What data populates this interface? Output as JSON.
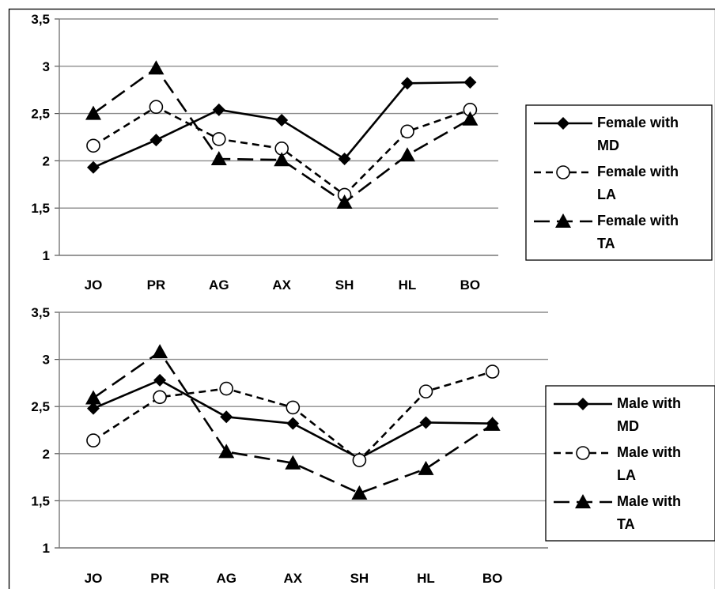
{
  "chart_data": [
    {
      "type": "line",
      "title": "",
      "xlabel": "",
      "ylabel": "",
      "categories": [
        "JO",
        "PR",
        "AG",
        "AX",
        "SH",
        "HL",
        "BO"
      ],
      "ylim": [
        1,
        3.5
      ],
      "yticks": [
        "1",
        "1,5",
        "2",
        "2,5",
        "3",
        "3,5"
      ],
      "grid": true,
      "legend_position": "right",
      "series": [
        {
          "name_lines": [
            "Female with",
            "MD"
          ],
          "marker": "diamond",
          "dash": "solid",
          "values": [
            1.93,
            2.22,
            2.54,
            2.43,
            2.02,
            2.82,
            2.83
          ]
        },
        {
          "name_lines": [
            "Female with",
            "LA"
          ],
          "marker": "circle",
          "dash": "short",
          "values": [
            2.16,
            2.57,
            2.23,
            2.13,
            1.64,
            2.31,
            2.54
          ]
        },
        {
          "name_lines": [
            "Female with",
            "TA"
          ],
          "marker": "triangle",
          "dash": "long",
          "values": [
            2.5,
            2.98,
            2.02,
            2.01,
            1.56,
            2.06,
            2.44
          ]
        }
      ]
    },
    {
      "type": "line",
      "title": "",
      "xlabel": "",
      "ylabel": "",
      "categories": [
        "JO",
        "PR",
        "AG",
        "AX",
        "SH",
        "HL",
        "BO"
      ],
      "ylim": [
        1,
        3.5
      ],
      "yticks": [
        "1",
        "1,5",
        "2",
        "2,5",
        "3",
        "3,5"
      ],
      "grid": true,
      "legend_position": "right",
      "series": [
        {
          "name_lines": [
            "Male with",
            "MD"
          ],
          "marker": "diamond",
          "dash": "solid",
          "values": [
            2.48,
            2.78,
            2.39,
            2.32,
            1.95,
            2.33,
            2.32
          ]
        },
        {
          "name_lines": [
            "Male with",
            "LA"
          ],
          "marker": "circle",
          "dash": "short",
          "values": [
            2.14,
            2.6,
            2.69,
            2.49,
            1.93,
            2.66,
            2.87
          ]
        },
        {
          "name_lines": [
            "Male with",
            "TA"
          ],
          "marker": "triangle",
          "dash": "long",
          "values": [
            2.59,
            3.08,
            2.02,
            1.9,
            1.58,
            1.84,
            2.31
          ]
        }
      ]
    }
  ]
}
